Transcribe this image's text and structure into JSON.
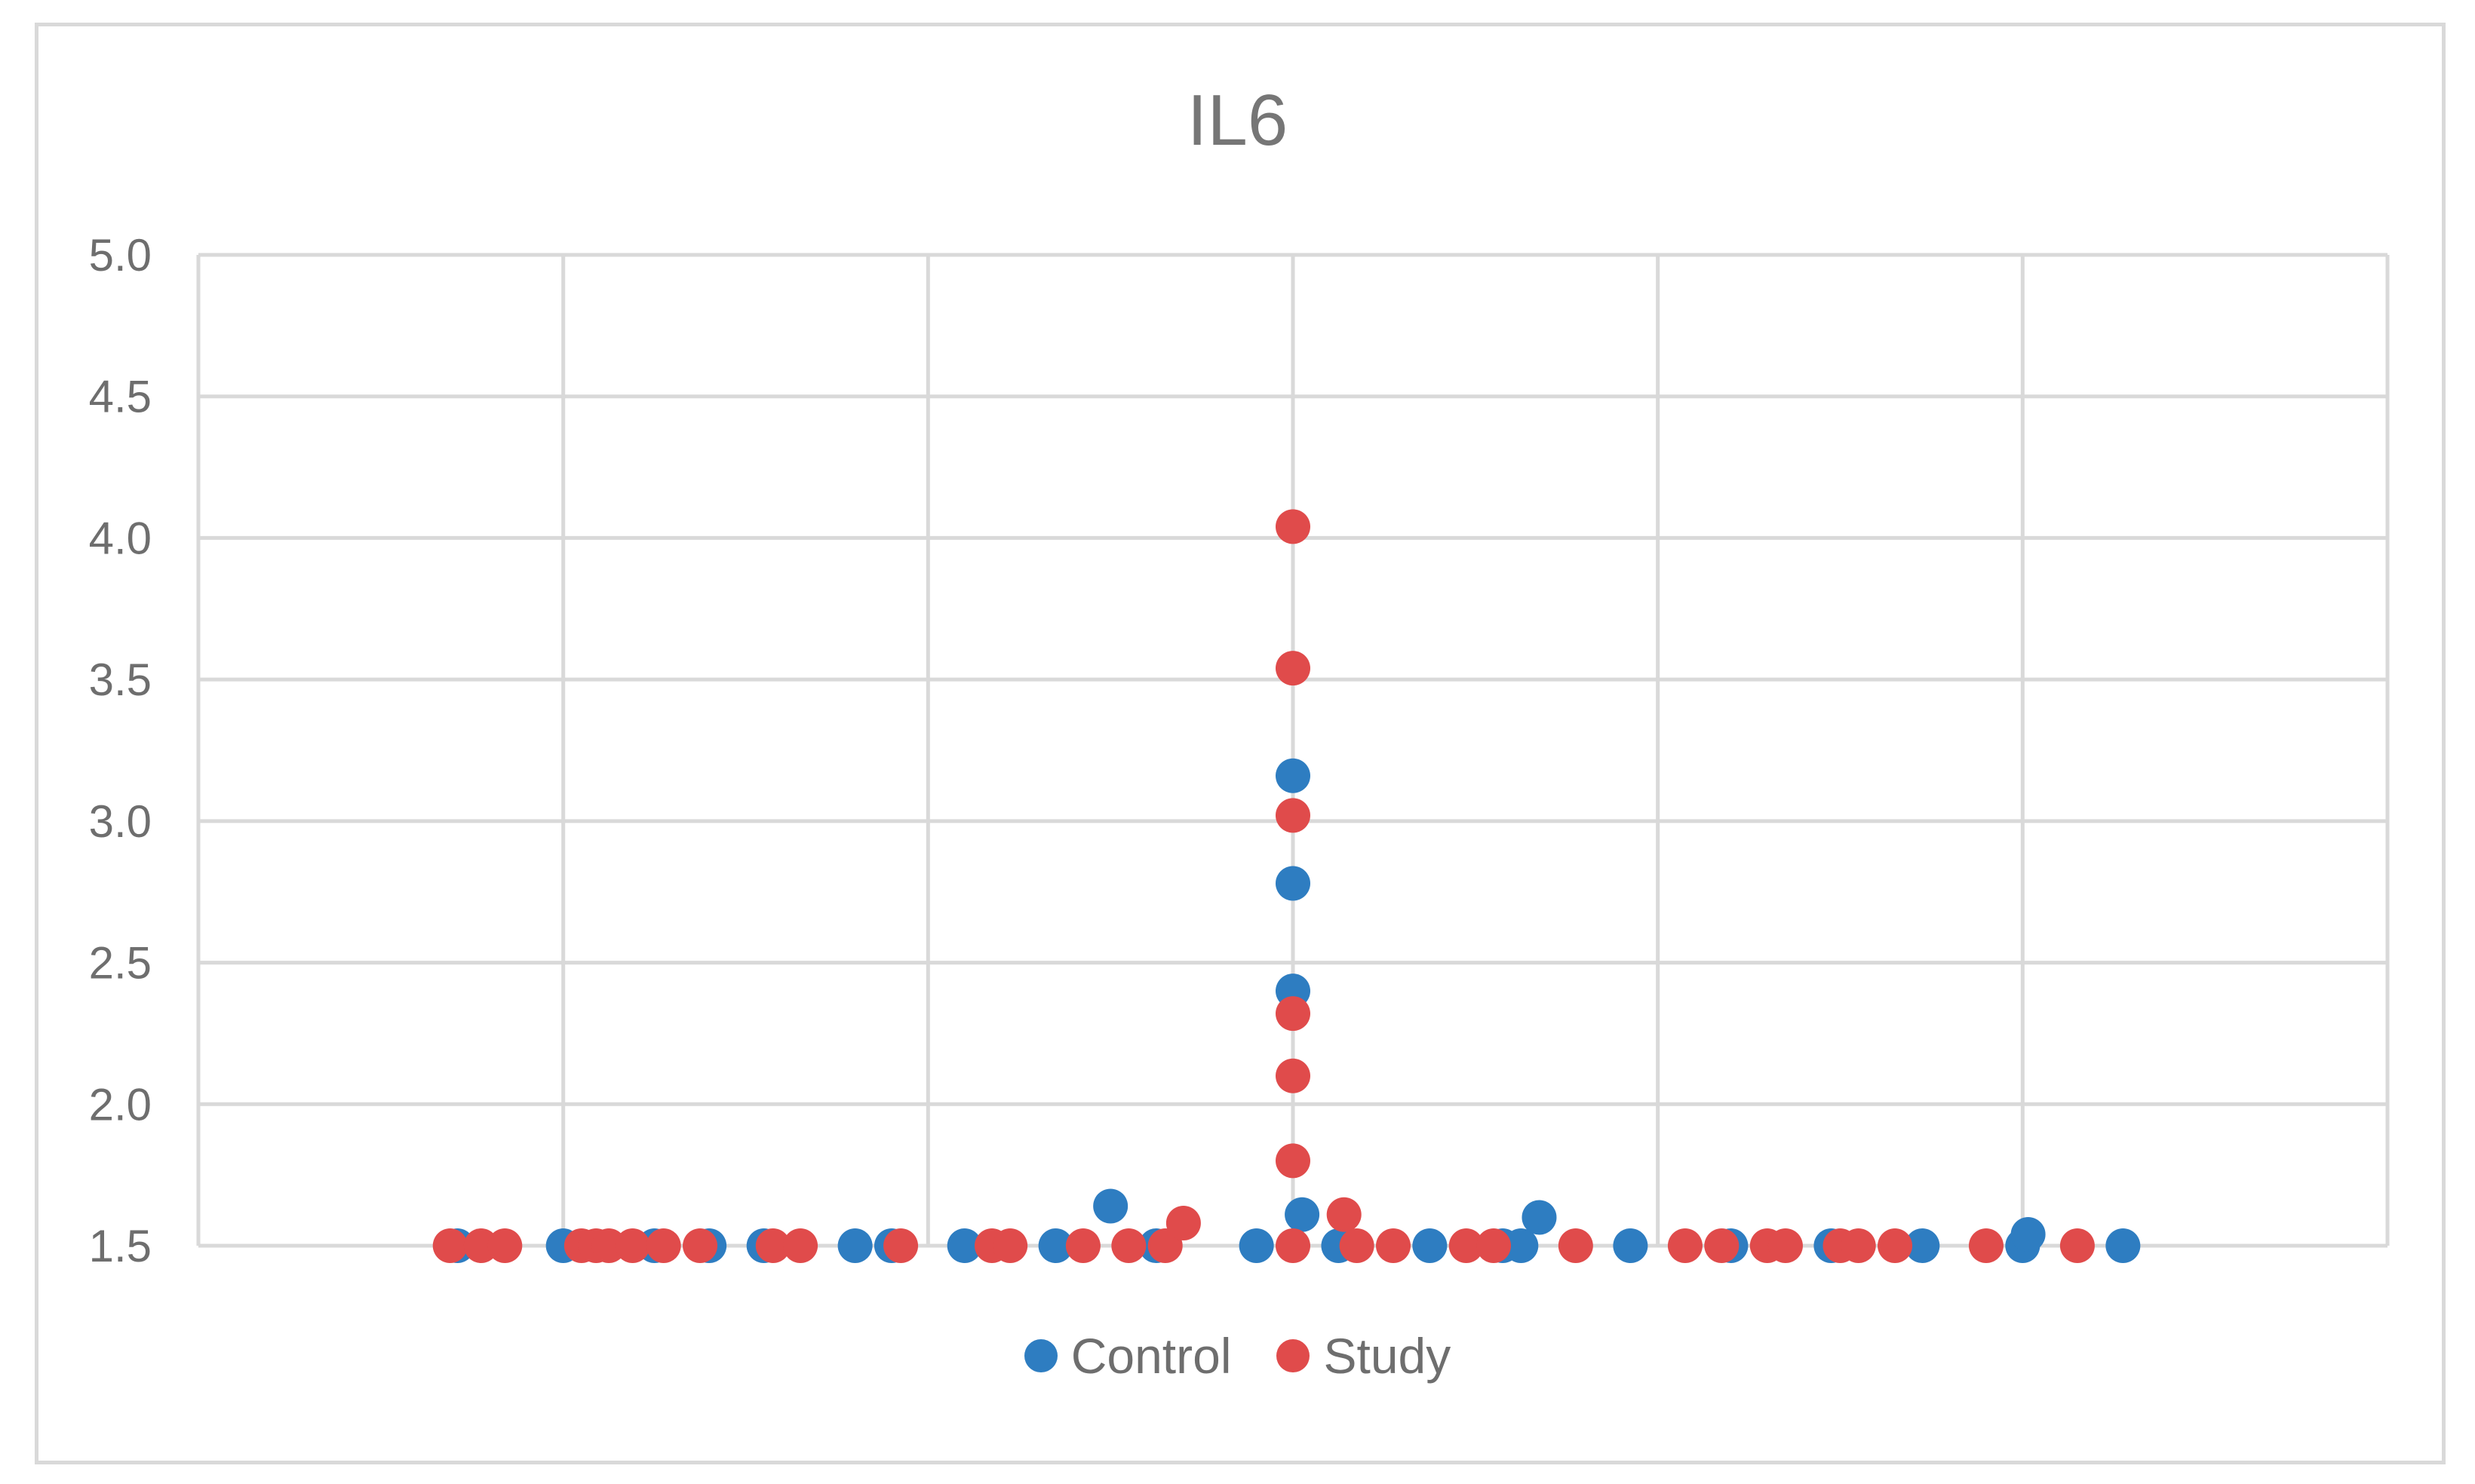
{
  "chart_data": {
    "type": "scatter",
    "title": "IL6",
    "xlabel": "",
    "ylabel": "",
    "ylim": [
      1.5,
      5.0
    ],
    "xlim": [
      0,
      12
    ],
    "yticks": [
      "1.5",
      "2.0",
      "2.5",
      "3.0",
      "3.5",
      "4.0",
      "4.5",
      "5.0"
    ],
    "grid": true,
    "legend_position": "bottom",
    "series": [
      {
        "name": "Control",
        "color": "#2e7dc1",
        "points": [
          [
            1.42,
            1.5
          ],
          [
            2.0,
            1.5
          ],
          [
            2.5,
            1.5
          ],
          [
            2.8,
            1.5
          ],
          [
            3.1,
            1.5
          ],
          [
            3.6,
            1.5
          ],
          [
            3.8,
            1.5
          ],
          [
            4.2,
            1.5
          ],
          [
            4.7,
            1.5
          ],
          [
            5.0,
            1.64
          ],
          [
            5.25,
            1.5
          ],
          [
            5.8,
            1.5
          ],
          [
            6.0,
            3.16
          ],
          [
            6.0,
            2.78
          ],
          [
            6.0,
            2.4
          ],
          [
            6.05,
            1.61
          ],
          [
            6.25,
            1.5
          ],
          [
            6.75,
            1.5
          ],
          [
            7.15,
            1.5
          ],
          [
            7.25,
            1.5
          ],
          [
            7.35,
            1.6
          ],
          [
            7.85,
            1.5
          ],
          [
            8.4,
            1.5
          ],
          [
            8.95,
            1.5
          ],
          [
            9.45,
            1.5
          ],
          [
            10.0,
            1.5
          ],
          [
            10.03,
            1.54
          ],
          [
            10.55,
            1.5
          ]
        ]
      },
      {
        "name": "Study",
        "color": "#e04b4b",
        "points": [
          [
            1.38,
            1.5
          ],
          [
            1.55,
            1.5
          ],
          [
            1.68,
            1.5
          ],
          [
            2.1,
            1.5
          ],
          [
            2.18,
            1.5
          ],
          [
            2.25,
            1.5
          ],
          [
            2.38,
            1.5
          ],
          [
            2.55,
            1.5
          ],
          [
            2.75,
            1.5
          ],
          [
            3.15,
            1.5
          ],
          [
            3.3,
            1.5
          ],
          [
            3.85,
            1.5
          ],
          [
            4.35,
            1.5
          ],
          [
            4.45,
            1.5
          ],
          [
            4.85,
            1.5
          ],
          [
            5.1,
            1.5
          ],
          [
            5.3,
            1.5
          ],
          [
            5.4,
            1.58
          ],
          [
            6.0,
            4.04
          ],
          [
            6.0,
            3.54
          ],
          [
            6.0,
            3.02
          ],
          [
            6.0,
            2.32
          ],
          [
            6.0,
            2.1
          ],
          [
            6.0,
            1.8
          ],
          [
            6.0,
            1.5
          ],
          [
            6.28,
            1.61
          ],
          [
            6.35,
            1.5
          ],
          [
            6.55,
            1.5
          ],
          [
            6.95,
            1.5
          ],
          [
            7.1,
            1.5
          ],
          [
            7.55,
            1.5
          ],
          [
            8.15,
            1.5
          ],
          [
            8.35,
            1.5
          ],
          [
            8.6,
            1.5
          ],
          [
            8.7,
            1.5
          ],
          [
            9.0,
            1.5
          ],
          [
            9.1,
            1.5
          ],
          [
            9.3,
            1.5
          ],
          [
            9.8,
            1.5
          ],
          [
            10.3,
            1.5
          ]
        ]
      }
    ]
  }
}
